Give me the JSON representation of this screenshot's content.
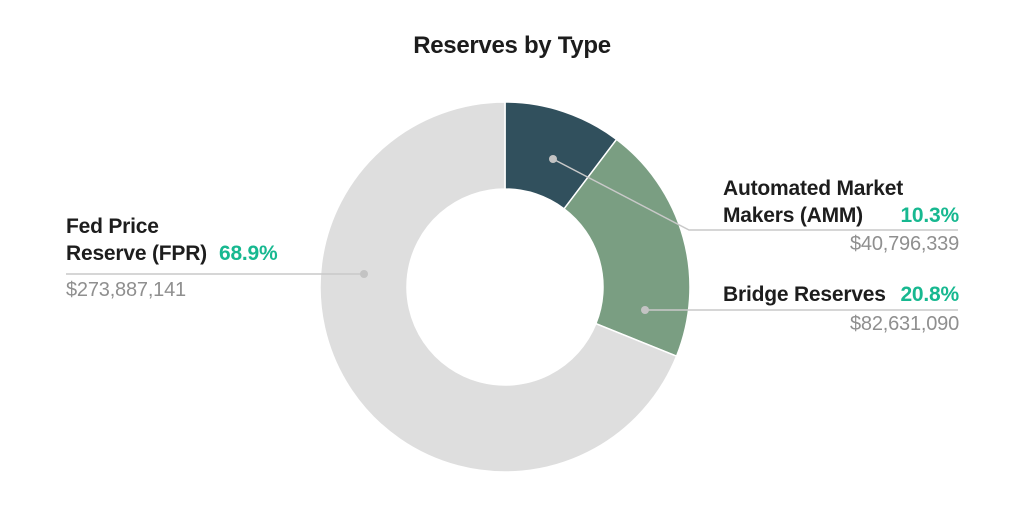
{
  "title": "Reserves by Type",
  "accent_color": "#17b890",
  "chart_data": {
    "type": "pie",
    "subtype": "donut",
    "title": "Reserves by Type",
    "legend_position": "callout-labels",
    "start_angle_deg": 0,
    "direction": "clockwise",
    "segments": [
      {
        "name": "Automated Market Makers (AMM)",
        "percent": 10.3,
        "percent_label": "10.3%",
        "value_usd": 40796339,
        "value_label": "$40,796,339",
        "color": "#31505d"
      },
      {
        "name": "Bridge Reserves",
        "percent": 20.8,
        "percent_label": "20.8%",
        "value_usd": 82631090,
        "value_label": "$82,631,090",
        "color": "#7a9e82"
      },
      {
        "name": "Fed Price Reserve (FPR)",
        "percent": 68.9,
        "percent_label": "68.9%",
        "value_usd": 273887141,
        "value_label": "$273,887,141",
        "color": "#dedede"
      }
    ]
  },
  "labels": {
    "fpr": {
      "line1": "Fed Price",
      "line2": "Reserve (FPR)",
      "percent": "68.9%",
      "value": "$273,887,141"
    },
    "amm": {
      "line1": "Automated Market",
      "line2": "Makers (AMM)",
      "percent": "10.3%",
      "value": "$40,796,339"
    },
    "bridge": {
      "line1": "Bridge Reserves",
      "percent": "20.8%",
      "value": "$82,631,090"
    }
  }
}
